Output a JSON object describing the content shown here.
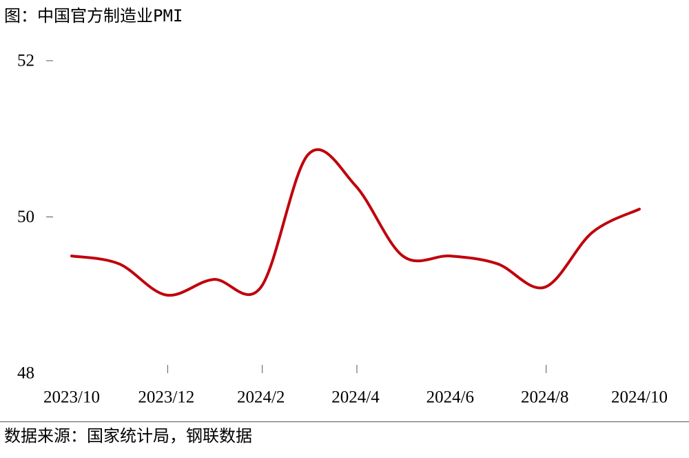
{
  "title": "图：中国官方制造业PMI",
  "source": "数据来源：国家统计局，钢联数据",
  "colors": {
    "line": "#c0000b",
    "tick": "#555555",
    "text": "#000000"
  },
  "chart_data": {
    "type": "line",
    "title": "图：中国官方制造业PMI",
    "xlabel": "",
    "ylabel": "",
    "x": [
      "2023/10",
      "2023/11",
      "2023/12",
      "2024/1",
      "2024/2",
      "2024/3",
      "2024/4",
      "2024/5",
      "2024/6",
      "2024/7",
      "2024/8",
      "2024/9",
      "2024/10"
    ],
    "x_tick_labels": [
      "2023/10",
      "2023/12",
      "2024/2",
      "2024/4",
      "2024/6",
      "2024/8",
      "2024/10"
    ],
    "y_tick_labels": [
      "52",
      "50",
      "48"
    ],
    "y_ticks": [
      52,
      50,
      48
    ],
    "ylim": [
      48,
      52
    ],
    "grid": false,
    "legend": "none",
    "series": [
      {
        "name": "制造业PMI",
        "values": [
          49.5,
          49.4,
          49.0,
          49.2,
          49.1,
          50.8,
          50.4,
          49.5,
          49.5,
          49.4,
          49.1,
          49.8,
          50.1
        ]
      }
    ]
  }
}
